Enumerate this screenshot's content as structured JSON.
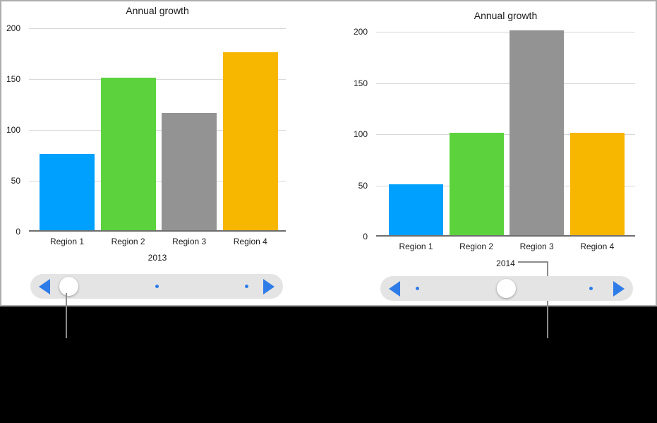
{
  "theme": {
    "text": "#1b1b1b",
    "grid": "#d8d8d8",
    "axis": "#6e6e6e",
    "pill": "#e4e4e4",
    "accent_blue": "#2e7ce8",
    "callout": "#8c8c8c",
    "frame_border": "#acacac",
    "redaction": "#000000"
  },
  "chart_data": [
    {
      "type": "bar",
      "title": "Annual growth",
      "categories": [
        "Region 1",
        "Region 2",
        "Region 3",
        "Region 4"
      ],
      "values": [
        75,
        150,
        115,
        175
      ],
      "bar_colors": [
        "#00a0ff",
        "#5cd33c",
        "#939393",
        "#f7b600"
      ],
      "xlabel": "2013",
      "ylabel": "",
      "ylim": [
        0,
        200
      ],
      "yticks": [
        0,
        50,
        100,
        150,
        200
      ],
      "grid": true,
      "legend_position": "none"
    },
    {
      "type": "bar",
      "title": "Annual growth",
      "categories": [
        "Region 1",
        "Region 2",
        "Region 3",
        "Region 4"
      ],
      "values": [
        50,
        100,
        200,
        100
      ],
      "bar_colors": [
        "#00a0ff",
        "#5cd33c",
        "#939393",
        "#f7b600"
      ],
      "xlabel": "2014",
      "ylabel": "",
      "ylim": [
        0,
        200
      ],
      "yticks": [
        0,
        50,
        100,
        150,
        200
      ],
      "grid": true,
      "legend_position": "none"
    }
  ],
  "sliders": [
    {
      "for_series": "2013",
      "stop_fractions": [
        0.151,
        0.5,
        0.855
      ],
      "thumb_stop_index": 0
    },
    {
      "for_series": "2014",
      "stop_fractions": [
        0.148,
        0.499,
        0.835
      ],
      "thumb_stop_index": 1
    }
  ]
}
